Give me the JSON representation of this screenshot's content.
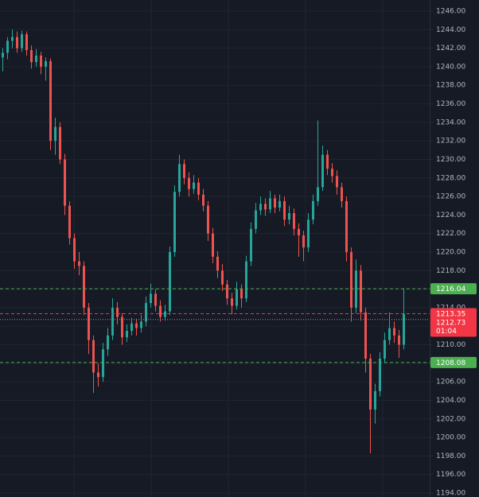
{
  "chart_data": {
    "type": "candlestick",
    "up_color": "#26a69a",
    "down_color": "#ef5350",
    "grid": true,
    "ylim": [
      1193.57,
      1247.2
    ],
    "yticks": [
      {
        "value": 1194,
        "label": "1194.00"
      },
      {
        "value": 1196,
        "label": "1196.00"
      },
      {
        "value": 1198,
        "label": "1198.00"
      },
      {
        "value": 1200,
        "label": "1200.00"
      },
      {
        "value": 1202,
        "label": "1202.00"
      },
      {
        "value": 1204,
        "label": "1204.00"
      },
      {
        "value": 1206,
        "label": "1206.00"
      },
      {
        "value": 1208,
        "label": "1208.00"
      },
      {
        "value": 1210,
        "label": "1210.00"
      },
      {
        "value": 1212,
        "label": "1212.00"
      },
      {
        "value": 1214,
        "label": "1214.00"
      },
      {
        "value": 1216,
        "label": "1216.00"
      },
      {
        "value": 1218,
        "label": "1218.00"
      },
      {
        "value": 1220,
        "label": "1220.00"
      },
      {
        "value": 1222,
        "label": "1222.00"
      },
      {
        "value": 1224,
        "label": "1224.00"
      },
      {
        "value": 1226,
        "label": "1226.00"
      },
      {
        "value": 1228,
        "label": "1228.00"
      },
      {
        "value": 1230,
        "label": "1230.00"
      },
      {
        "value": 1232,
        "label": "1232.00"
      },
      {
        "value": 1234,
        "label": "1234.00"
      },
      {
        "value": 1236,
        "label": "1236.00"
      },
      {
        "value": 1238,
        "label": "1238.00"
      },
      {
        "value": 1240,
        "label": "1240.00"
      },
      {
        "value": 1242,
        "label": "1242.00"
      },
      {
        "value": 1244,
        "label": "1244.00"
      },
      {
        "value": 1246,
        "label": "1246.00"
      }
    ],
    "price_lines": [
      {
        "value": 1216.04,
        "label": "1216.04",
        "color": "#4caf50"
      },
      {
        "value": 1208.08,
        "label": "1208.08",
        "color": "#4caf50"
      }
    ],
    "last_price": {
      "value": 1213.35,
      "label": "1213.35",
      "color": "#f23645"
    },
    "bid": {
      "value": 1212.73,
      "label": "1212.73",
      "countdown": "01:04"
    },
    "candles": [
      [
        1241.0,
        1242.0,
        1239.5,
        1241.5
      ],
      [
        1241.5,
        1243.2,
        1240.8,
        1242.8
      ],
      [
        1242.8,
        1244.0,
        1242.0,
        1243.2
      ],
      [
        1243.2,
        1243.8,
        1241.5,
        1242.0
      ],
      [
        1242.0,
        1243.9,
        1241.6,
        1243.5
      ],
      [
        1243.5,
        1243.8,
        1241.2,
        1241.8
      ],
      [
        1241.8,
        1242.3,
        1239.8,
        1240.5
      ],
      [
        1240.5,
        1241.9,
        1240.0,
        1241.2
      ],
      [
        1241.2,
        1241.6,
        1239.2,
        1240.0
      ],
      [
        1240.0,
        1241.0,
        1238.5,
        1240.6
      ],
      [
        1240.6,
        1240.9,
        1231.0,
        1232.0
      ],
      [
        1232.0,
        1234.5,
        1230.5,
        1233.5
      ],
      [
        1233.5,
        1234.0,
        1229.5,
        1230.0
      ],
      [
        1230.0,
        1230.6,
        1224.0,
        1225.0
      ],
      [
        1225.0,
        1225.5,
        1220.8,
        1221.5
      ],
      [
        1221.5,
        1222.0,
        1218.2,
        1219.0
      ],
      [
        1219.0,
        1220.0,
        1217.5,
        1218.5
      ],
      [
        1218.5,
        1219.0,
        1213.2,
        1214.0
      ],
      [
        1214.0,
        1214.5,
        1209.0,
        1210.5
      ],
      [
        1210.5,
        1211.0,
        1204.8,
        1207.0
      ],
      [
        1207.0,
        1208.0,
        1205.5,
        1206.5
      ],
      [
        1206.5,
        1210.2,
        1206.0,
        1209.5
      ],
      [
        1209.5,
        1211.8,
        1208.8,
        1211.0
      ],
      [
        1211.0,
        1215.0,
        1210.5,
        1214.0
      ],
      [
        1214.0,
        1214.6,
        1212.2,
        1213.0
      ],
      [
        1213.0,
        1213.4,
        1210.0,
        1210.8
      ],
      [
        1210.8,
        1212.2,
        1210.3,
        1211.5
      ],
      [
        1211.5,
        1212.9,
        1211.0,
        1212.3
      ],
      [
        1212.3,
        1212.8,
        1211.0,
        1211.8
      ],
      [
        1211.8,
        1213.2,
        1211.3,
        1212.5
      ],
      [
        1212.5,
        1215.2,
        1212.0,
        1214.5
      ],
      [
        1214.5,
        1216.6,
        1214.0,
        1215.5
      ],
      [
        1215.5,
        1216.0,
        1213.6,
        1214.2
      ],
      [
        1214.2,
        1214.8,
        1212.5,
        1213.0
      ],
      [
        1213.0,
        1214.3,
        1212.6,
        1213.6
      ],
      [
        1213.6,
        1220.6,
        1213.2,
        1220.0
      ],
      [
        1220.0,
        1227.2,
        1219.5,
        1226.5
      ],
      [
        1226.5,
        1230.5,
        1226.0,
        1229.5
      ],
      [
        1229.5,
        1230.0,
        1227.3,
        1228.0
      ],
      [
        1228.0,
        1228.6,
        1226.0,
        1226.8
      ],
      [
        1226.8,
        1228.3,
        1226.3,
        1227.5
      ],
      [
        1227.5,
        1228.0,
        1225.6,
        1226.2
      ],
      [
        1226.2,
        1226.8,
        1224.4,
        1225.0
      ],
      [
        1225.0,
        1225.5,
        1221.2,
        1222.0
      ],
      [
        1222.0,
        1222.6,
        1218.8,
        1219.5
      ],
      [
        1219.5,
        1220.1,
        1217.2,
        1218.0
      ],
      [
        1218.0,
        1218.7,
        1215.8,
        1216.5
      ],
      [
        1216.5,
        1217.0,
        1214.3,
        1215.0
      ],
      [
        1215.0,
        1215.6,
        1213.3,
        1214.2
      ],
      [
        1214.2,
        1216.8,
        1213.8,
        1216.0
      ],
      [
        1216.0,
        1216.5,
        1214.0,
        1215.0
      ],
      [
        1215.0,
        1219.6,
        1214.6,
        1219.0
      ],
      [
        1219.0,
        1223.2,
        1218.5,
        1222.5
      ],
      [
        1222.5,
        1225.3,
        1222.0,
        1224.5
      ],
      [
        1224.5,
        1226.0,
        1224.0,
        1225.2
      ],
      [
        1225.2,
        1225.8,
        1223.9,
        1224.6
      ],
      [
        1224.6,
        1226.6,
        1224.2,
        1225.8
      ],
      [
        1225.8,
        1226.2,
        1224.2,
        1224.8
      ],
      [
        1224.8,
        1226.2,
        1224.4,
        1225.5
      ],
      [
        1225.5,
        1226.0,
        1222.8,
        1223.5
      ],
      [
        1223.5,
        1225.0,
        1223.0,
        1224.2
      ],
      [
        1224.2,
        1224.7,
        1221.8,
        1222.5
      ],
      [
        1222.5,
        1223.1,
        1219.5,
        1221.8
      ],
      [
        1221.8,
        1222.3,
        1219.0,
        1220.5
      ],
      [
        1220.5,
        1224.2,
        1220.0,
        1223.5
      ],
      [
        1223.5,
        1226.2,
        1223.0,
        1225.5
      ],
      [
        1225.5,
        1234.2,
        1225.0,
        1227.0
      ],
      [
        1227.0,
        1231.5,
        1226.6,
        1230.5
      ],
      [
        1230.5,
        1231.0,
        1228.3,
        1229.0
      ],
      [
        1229.0,
        1229.6,
        1227.5,
        1228.2
      ],
      [
        1228.2,
        1228.8,
        1226.2,
        1227.0
      ],
      [
        1227.0,
        1227.5,
        1224.8,
        1225.5
      ],
      [
        1225.5,
        1226.0,
        1219.0,
        1220.0
      ],
      [
        1220.0,
        1220.5,
        1212.5,
        1214.0
      ],
      [
        1214.0,
        1219.2,
        1213.4,
        1218.0
      ],
      [
        1218.0,
        1218.6,
        1212.6,
        1213.5
      ],
      [
        1213.5,
        1214.0,
        1207.0,
        1208.5
      ],
      [
        1208.5,
        1209.0,
        1198.3,
        1203.0
      ],
      [
        1203.0,
        1205.8,
        1201.5,
        1205.0
      ],
      [
        1205.0,
        1209.2,
        1204.4,
        1208.5
      ],
      [
        1208.5,
        1211.3,
        1208.0,
        1210.5
      ],
      [
        1210.5,
        1213.5,
        1210.0,
        1211.8
      ],
      [
        1211.8,
        1212.5,
        1210.2,
        1211.0
      ],
      [
        1211.0,
        1211.6,
        1208.6,
        1210.0
      ],
      [
        1210.0,
        1216.0,
        1209.5,
        1213.35
      ]
    ]
  }
}
